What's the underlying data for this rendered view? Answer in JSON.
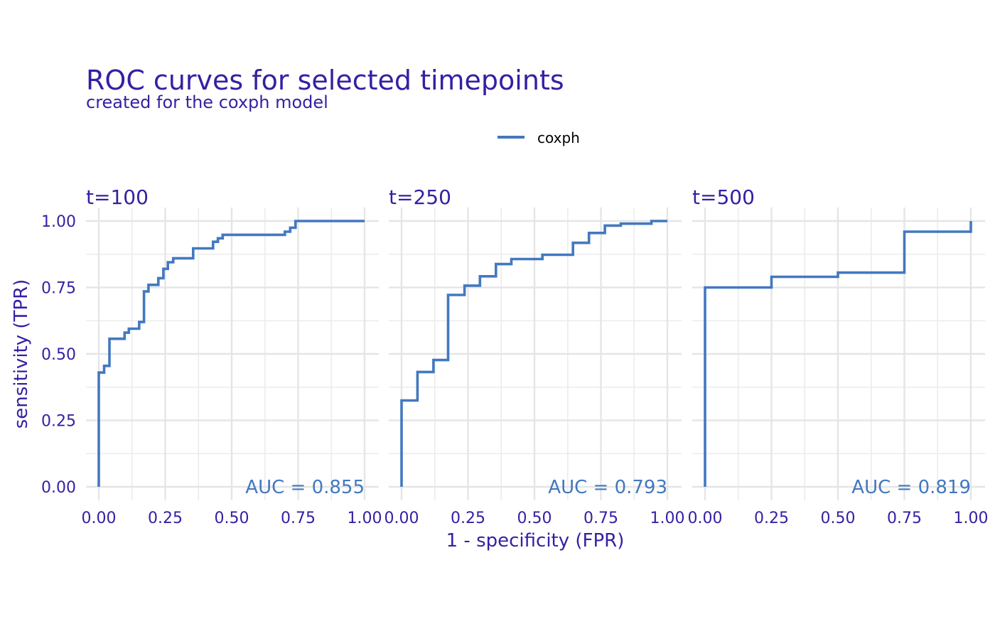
{
  "chart_data": {
    "type": "line",
    "title": "ROC curves for selected timepoints",
    "subtitle": "created for the coxph model",
    "xlabel": "1 - specificity (FPR)",
    "ylabel": "sensitivity (TPR)",
    "xlim": [
      0,
      1
    ],
    "ylim": [
      0,
      1
    ],
    "x_ticks": [
      "0.00",
      "0.25",
      "0.50",
      "0.75",
      "1.00"
    ],
    "y_ticks": [
      "0.00",
      "0.25",
      "0.50",
      "0.75",
      "1.00"
    ],
    "grid": true,
    "legend": {
      "position": "top",
      "entries": [
        "coxph"
      ]
    },
    "series_color": "#4378bf",
    "text_color": "#371ea3",
    "panels": [
      {
        "label": "t=100",
        "auc_label": "AUC = 0.855",
        "series": [
          {
            "name": "coxph",
            "points": [
              [
                0.0,
                0.0
              ],
              [
                0.0,
                0.43
              ],
              [
                0.02,
                0.43
              ],
              [
                0.02,
                0.455
              ],
              [
                0.04,
                0.455
              ],
              [
                0.04,
                0.557
              ],
              [
                0.097,
                0.557
              ],
              [
                0.097,
                0.58
              ],
              [
                0.113,
                0.58
              ],
              [
                0.113,
                0.595
              ],
              [
                0.152,
                0.595
              ],
              [
                0.152,
                0.62
              ],
              [
                0.17,
                0.62
              ],
              [
                0.17,
                0.735
              ],
              [
                0.187,
                0.735
              ],
              [
                0.187,
                0.76
              ],
              [
                0.224,
                0.76
              ],
              [
                0.224,
                0.785
              ],
              [
                0.243,
                0.785
              ],
              [
                0.243,
                0.82
              ],
              [
                0.26,
                0.82
              ],
              [
                0.26,
                0.845
              ],
              [
                0.28,
                0.845
              ],
              [
                0.28,
                0.86
              ],
              [
                0.355,
                0.86
              ],
              [
                0.355,
                0.897
              ],
              [
                0.43,
                0.897
              ],
              [
                0.43,
                0.922
              ],
              [
                0.448,
                0.922
              ],
              [
                0.448,
                0.935
              ],
              [
                0.466,
                0.935
              ],
              [
                0.466,
                0.948
              ],
              [
                0.7,
                0.948
              ],
              [
                0.7,
                0.96
              ],
              [
                0.72,
                0.96
              ],
              [
                0.72,
                0.975
              ],
              [
                0.74,
                0.975
              ],
              [
                0.74,
                1.0
              ],
              [
                1.0,
                1.0
              ]
            ]
          }
        ]
      },
      {
        "label": "t=250",
        "auc_label": "AUC = 0.793",
        "series": [
          {
            "name": "coxph",
            "points": [
              [
                0.0,
                0.0
              ],
              [
                0.0,
                0.325
              ],
              [
                0.06,
                0.325
              ],
              [
                0.06,
                0.432
              ],
              [
                0.12,
                0.432
              ],
              [
                0.12,
                0.477
              ],
              [
                0.175,
                0.477
              ],
              [
                0.175,
                0.722
              ],
              [
                0.237,
                0.722
              ],
              [
                0.237,
                0.757
              ],
              [
                0.295,
                0.757
              ],
              [
                0.295,
                0.792
              ],
              [
                0.355,
                0.792
              ],
              [
                0.355,
                0.838
              ],
              [
                0.413,
                0.838
              ],
              [
                0.413,
                0.857
              ],
              [
                0.53,
                0.857
              ],
              [
                0.53,
                0.873
              ],
              [
                0.645,
                0.873
              ],
              [
                0.645,
                0.918
              ],
              [
                0.705,
                0.918
              ],
              [
                0.705,
                0.955
              ],
              [
                0.765,
                0.955
              ],
              [
                0.765,
                0.983
              ],
              [
                0.825,
                0.983
              ],
              [
                0.825,
                0.99
              ],
              [
                0.94,
                0.99
              ],
              [
                0.94,
                1.0
              ],
              [
                1.0,
                1.0
              ]
            ]
          }
        ]
      },
      {
        "label": "t=500",
        "auc_label": "AUC = 0.819",
        "series": [
          {
            "name": "coxph",
            "points": [
              [
                0.0,
                0.0
              ],
              [
                0.0,
                0.75
              ],
              [
                0.25,
                0.75
              ],
              [
                0.25,
                0.79
              ],
              [
                0.5,
                0.79
              ],
              [
                0.5,
                0.806
              ],
              [
                0.75,
                0.806
              ],
              [
                0.75,
                0.96
              ],
              [
                1.0,
                0.96
              ],
              [
                1.0,
                1.0
              ]
            ]
          }
        ]
      }
    ]
  }
}
